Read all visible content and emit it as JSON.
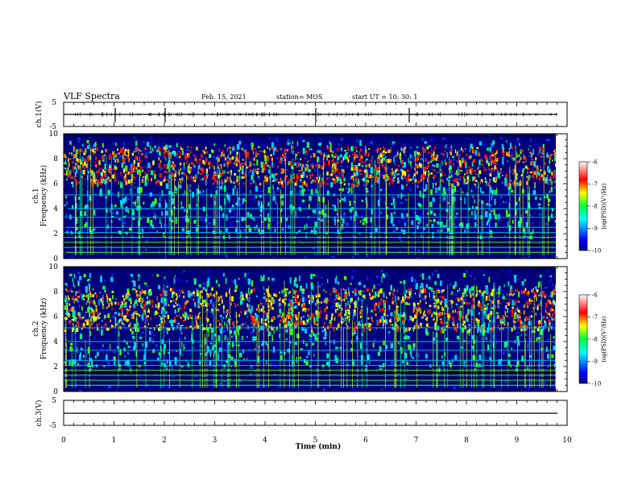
{
  "header": {
    "title": "VLF Spectra",
    "date": "Feb. 15, 2021",
    "station": "station= MOS",
    "start": "start  UT =   10: 30: 1"
  },
  "chart_data": [
    {
      "type": "line",
      "name": "ch1-waveform",
      "ylabel": "ch.1(V)",
      "ylim": [
        -5,
        5
      ],
      "yticks": [
        "5",
        "-5"
      ],
      "xlim": [
        0,
        10
      ]
    },
    {
      "type": "heatmap",
      "name": "ch1-spectrogram",
      "ylabel": "ch.1\nFrequency (kHz)",
      "ylabel_lines": [
        "ch.1",
        "Frequency (kHz)"
      ],
      "ylim": [
        0,
        10
      ],
      "yticks": [
        "0",
        "2",
        "4",
        "6",
        "8",
        "10"
      ],
      "xlim": [
        0,
        10
      ],
      "x_data_end": 9.85,
      "colorbar": {
        "label": "log(PSD)(V²/Hz)",
        "range": [
          -10,
          -6
        ],
        "ticks": [
          "-6",
          "-7",
          "-8",
          "-9",
          "-10"
        ]
      }
    },
    {
      "type": "heatmap",
      "name": "ch2-spectrogram",
      "ylabel": "ch.2\nFrequency (kHz)",
      "ylabel_lines": [
        "ch.2",
        "Frequency (kHz)"
      ],
      "ylim": [
        0,
        10
      ],
      "yticks": [
        "0",
        "2",
        "4",
        "6",
        "8",
        "10"
      ],
      "xlim": [
        0,
        10
      ],
      "x_data_end": 9.85,
      "colorbar": {
        "label": "log(PSD)(V²/Hz)",
        "range": [
          -10,
          -6
        ],
        "ticks": [
          "-6",
          "-7",
          "-8",
          "-9",
          "-10"
        ]
      }
    },
    {
      "type": "line",
      "name": "ch3-waveform",
      "ylabel": "ch.3(V)",
      "ylim": [
        -5,
        5
      ],
      "yticks": [
        "5",
        "-5"
      ],
      "xlim": [
        0,
        10
      ],
      "xlabel": "Time  (min)",
      "xticks": [
        "0",
        "1",
        "2",
        "3",
        "4",
        "5",
        "6",
        "7",
        "8",
        "9",
        "10"
      ]
    }
  ]
}
